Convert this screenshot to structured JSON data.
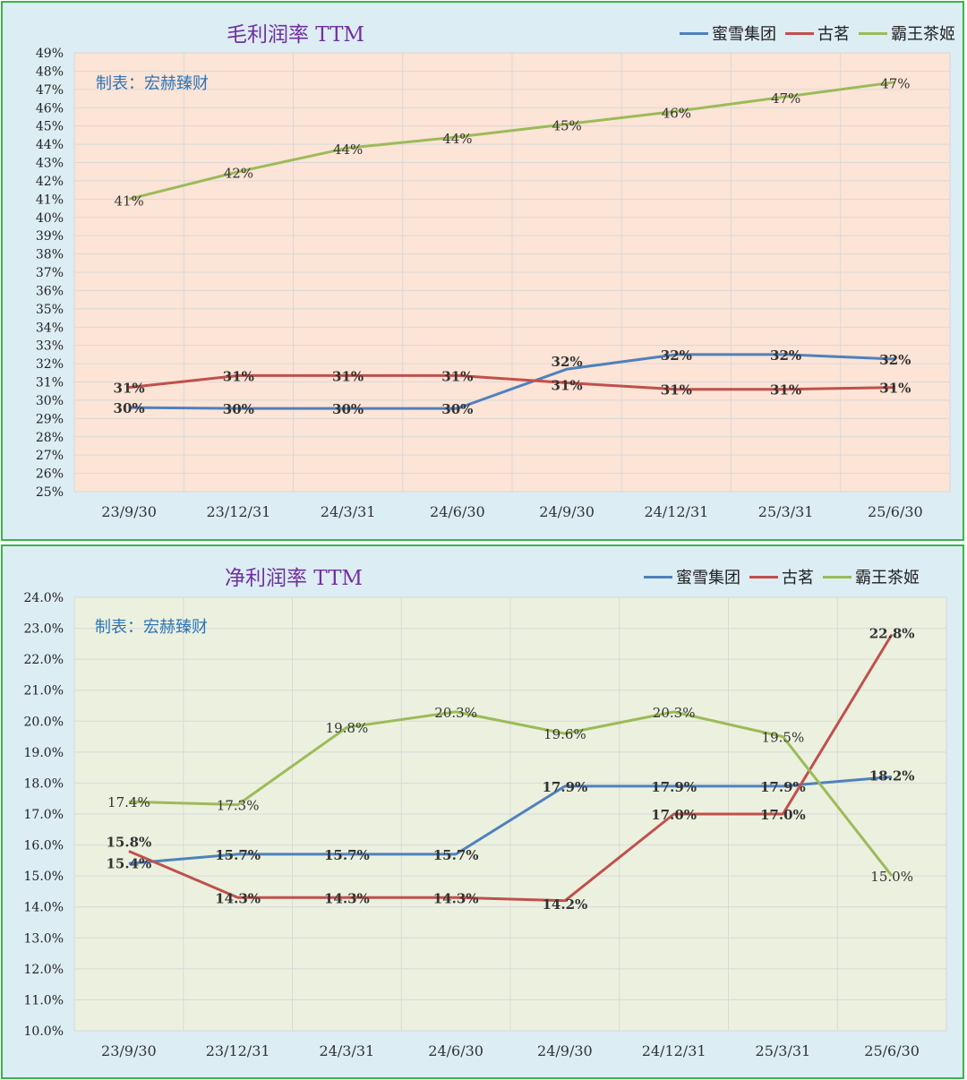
{
  "chart_data": [
    {
      "type": "line",
      "title": "毛利润率 TTM",
      "source": "制表：宏赫臻财",
      "categories": [
        "23/9/30",
        "23/12/31",
        "24/3/31",
        "24/6/30",
        "24/9/30",
        "24/12/31",
        "25/3/31",
        "25/6/30"
      ],
      "ylim": [
        25,
        49
      ],
      "ystep": 1,
      "ytick_format": "int",
      "grid": true,
      "legend_position": "top-right",
      "plot_bg": "#fce4d6",
      "series": [
        {
          "name": "蜜雪集团",
          "color": "#4f81bd",
          "values": [
            29.6,
            29.55,
            29.55,
            29.55,
            31.7,
            32.5,
            32.5,
            32.25
          ],
          "labels": [
            "30%",
            "30%",
            "30%",
            "30%",
            "32%",
            "32%",
            "32%",
            "32%"
          ],
          "label_weight": "bold"
        },
        {
          "name": "古茗",
          "color": "#c0504d",
          "values": [
            30.7,
            31.35,
            31.35,
            31.35,
            30.95,
            30.6,
            30.6,
            30.7
          ],
          "labels": [
            "31%",
            "31%",
            "31%",
            "31%",
            "31%",
            "31%",
            "31%",
            "31%"
          ],
          "label_weight": "bold"
        },
        {
          "name": "霸王茶姬",
          "color": "#9bbb59",
          "values": [
            41.0,
            42.5,
            43.8,
            44.4,
            45.1,
            45.8,
            46.6,
            47.4
          ],
          "labels": [
            "41%",
            "42%",
            "44%",
            "44%",
            "45%",
            "46%",
            "47%",
            "47%"
          ],
          "label_weight": "normal"
        }
      ]
    },
    {
      "type": "line",
      "title": "净利润率 TTM",
      "source": "制表：宏赫臻财",
      "categories": [
        "23/9/30",
        "23/12/31",
        "24/3/31",
        "24/6/30",
        "24/9/30",
        "24/12/31",
        "25/3/31",
        "25/6/30"
      ],
      "ylim": [
        10,
        24
      ],
      "ystep": 1,
      "ytick_format": "one_decimal",
      "grid": true,
      "legend_position": "top-right",
      "plot_bg": "#ebf1de",
      "series": [
        {
          "name": "蜜雪集团",
          "color": "#4f81bd",
          "values": [
            15.4,
            15.7,
            15.7,
            15.7,
            17.9,
            17.9,
            17.9,
            18.2
          ],
          "labels": [
            "15.4%",
            "15.7%",
            "15.7%",
            "15.7%",
            "17.9%",
            "17.9%",
            "17.9%",
            "18.2%"
          ],
          "label_weight": "bold"
        },
        {
          "name": "古茗",
          "color": "#c0504d",
          "values": [
            15.8,
            14.3,
            14.3,
            14.3,
            14.2,
            17.0,
            17.0,
            22.8
          ],
          "labels": [
            "15.8%",
            "14.3%",
            "14.3%",
            "14.3%",
            "14.2%",
            "17.0%",
            "17.0%",
            "22.8%"
          ],
          "label_weight": "bold"
        },
        {
          "name": "霸王茶姬",
          "color": "#9bbb59",
          "values": [
            17.4,
            17.3,
            19.8,
            20.3,
            19.6,
            20.3,
            19.5,
            15.0
          ],
          "labels": [
            "17.4%",
            "17.3%",
            "19.8%",
            "20.3%",
            "19.6%",
            "20.3%",
            "19.5%",
            "15.0%"
          ],
          "label_weight": "normal"
        }
      ]
    }
  ]
}
